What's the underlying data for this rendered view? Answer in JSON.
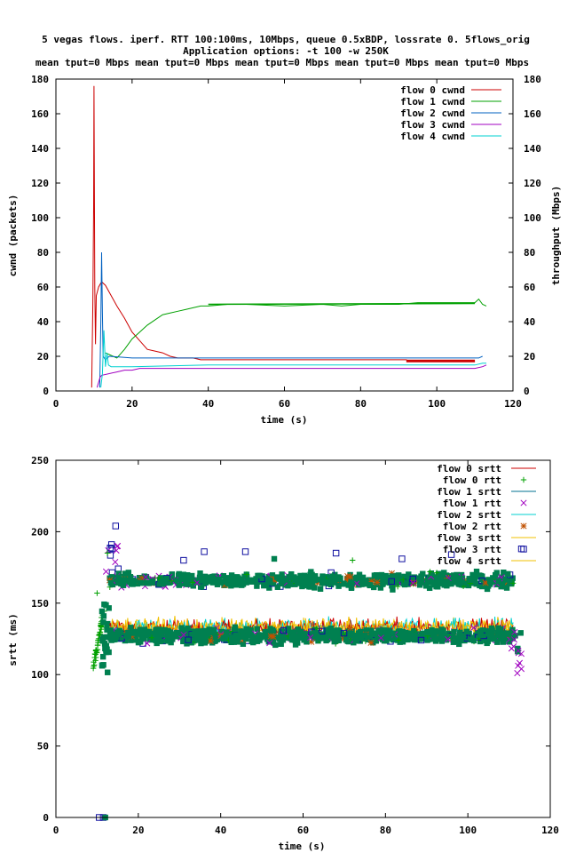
{
  "figure": {
    "title_lines": [
      "5 vegas flows. iperf. RTT 100:100ms, 10Mbps, queue 0.5xBDP, lossrate 0. 5flows_orig",
      "Application options: -t 100 -w 250K",
      "mean tput=0 Mbps mean tput=0 Mbps mean tput=0 Mbps mean tput=0 Mbps mean tput=0 Mbps"
    ]
  },
  "chart_data": [
    {
      "type": "line",
      "xlabel": "time (s)",
      "ylabel": "cwnd (packets)",
      "y2label": "throughput (Mbps)",
      "xlim": [
        0,
        120
      ],
      "ylim": [
        0,
        180
      ],
      "y2lim": [
        0,
        180
      ],
      "xticks": [
        "0",
        "20",
        "40",
        "60",
        "80",
        "100",
        "120"
      ],
      "yticks": [
        "0",
        "20",
        "40",
        "60",
        "80",
        "100",
        "120",
        "140",
        "160",
        "180"
      ],
      "y2ticks": [
        "0",
        "20",
        "40",
        "60",
        "80",
        "100",
        "120",
        "140",
        "160",
        "180"
      ],
      "legend_position": "top-right",
      "series": [
        {
          "name": "flow 0 cwnd",
          "color": "#cc0000",
          "points": [
            [
              9.4,
              2
            ],
            [
              9.7,
              50
            ],
            [
              9.9,
              106
            ],
            [
              10.0,
              176
            ],
            [
              10.2,
              60
            ],
            [
              10.4,
              27
            ],
            [
              10.6,
              55
            ],
            [
              11.2,
              60
            ],
            [
              12,
              63
            ],
            [
              13,
              61
            ],
            [
              14,
              57
            ],
            [
              15,
              53
            ],
            [
              16,
              49
            ],
            [
              18,
              42
            ],
            [
              20,
              34
            ],
            [
              22,
              29
            ],
            [
              24,
              24
            ],
            [
              26,
              23
            ],
            [
              28,
              22
            ],
            [
              30,
              20
            ],
            [
              32,
              19
            ],
            [
              36,
              19
            ],
            [
              38,
              18
            ],
            [
              60,
              18
            ],
            [
              92,
              18
            ],
            [
              93,
              17
            ],
            [
              110,
              17
            ]
          ]
        },
        {
          "name": "flow 1 cwnd",
          "color": "#00a000",
          "points": [
            [
              13,
              22
            ],
            [
              15,
              20
            ],
            [
              16,
              19
            ],
            [
              18,
              24
            ],
            [
              20,
              30
            ],
            [
              22,
              34
            ],
            [
              24,
              38
            ],
            [
              26,
              41
            ],
            [
              28,
              44
            ],
            [
              30,
              45
            ],
            [
              32,
              46
            ],
            [
              34,
              47
            ],
            [
              36,
              48
            ],
            [
              38,
              49
            ],
            [
              40,
              49
            ],
            [
              45,
              50
            ],
            [
              50,
              50
            ],
            [
              60,
              49
            ],
            [
              70,
              50
            ],
            [
              75,
              49
            ],
            [
              80,
              50
            ],
            [
              90,
              50
            ],
            [
              95,
              51
            ],
            [
              100,
              51
            ],
            [
              110,
              51
            ],
            [
              111,
              53
            ],
            [
              112,
              50
            ],
            [
              113,
              49
            ]
          ]
        },
        {
          "name": "flow 2 cwnd",
          "color": "#0060c0",
          "points": [
            [
              11.5,
              2
            ],
            [
              11.8,
              40
            ],
            [
              12.0,
              80
            ],
            [
              12.2,
              45
            ],
            [
              12.4,
              20
            ],
            [
              13,
              18
            ],
            [
              14,
              20
            ],
            [
              20,
              19
            ],
            [
              40,
              19
            ],
            [
              80,
              19
            ],
            [
              110,
              19
            ],
            [
              111,
              19
            ],
            [
              112,
              20
            ]
          ]
        },
        {
          "name": "flow 3 cwnd",
          "color": "#a000c0",
          "points": [
            [
              10.8,
              2
            ],
            [
              11.2,
              5
            ],
            [
              11.6,
              8
            ],
            [
              12,
              9
            ],
            [
              14,
              10
            ],
            [
              16,
              11
            ],
            [
              18,
              12
            ],
            [
              20,
              12
            ],
            [
              22,
              13
            ],
            [
              40,
              13
            ],
            [
              80,
              13
            ],
            [
              110,
              13
            ],
            [
              112,
              14
            ],
            [
              113,
              15
            ]
          ]
        },
        {
          "name": "flow 4 cwnd",
          "color": "#00d0d0",
          "points": [
            [
              11.8,
              2
            ],
            [
              12.2,
              10
            ],
            [
              12.6,
              35
            ],
            [
              13.0,
              14
            ],
            [
              13.4,
              22
            ],
            [
              13.8,
              15
            ],
            [
              14.5,
              14
            ],
            [
              20,
              14
            ],
            [
              40,
              15
            ],
            [
              80,
              15
            ],
            [
              110,
              15
            ],
            [
              112,
              16
            ],
            [
              113,
              16
            ]
          ]
        }
      ]
    },
    {
      "type": "scatter",
      "xlabel": "time (s)",
      "ylabel": "srtt (ms)",
      "xlim": [
        0,
        120
      ],
      "ylim": [
        0,
        250
      ],
      "xticks": [
        "0",
        "20",
        "40",
        "60",
        "80",
        "100",
        "120"
      ],
      "yticks": [
        "0",
        "50",
        "100",
        "150",
        "200",
        "250"
      ],
      "legend_position": "top-right",
      "legend": [
        {
          "name": "flow 0 srtt",
          "style": "line",
          "color": "#cc0000"
        },
        {
          "name": "flow 0 rtt",
          "style": "plus",
          "color": "#00a000"
        },
        {
          "name": "flow 1 srtt",
          "style": "line",
          "color": "#007090"
        },
        {
          "name": "flow 1 rtt",
          "style": "cross",
          "color": "#a000c0"
        },
        {
          "name": "flow 2 srtt",
          "style": "line",
          "color": "#00d0d0"
        },
        {
          "name": "flow 2 rtt",
          "style": "star",
          "color": "#c05000"
        },
        {
          "name": "flow 3 srtt",
          "style": "line",
          "color": "#f0c000"
        },
        {
          "name": "flow 3 rtt",
          "style": "square",
          "color": "#1010a0"
        },
        {
          "name": "flow 4 srtt",
          "style": "line",
          "color": "#f0c000"
        }
      ],
      "upper_band": {
        "x_range": [
          13,
          111
        ],
        "y_center": 166,
        "y_spread": 7
      },
      "lower_band": {
        "x_range": [
          13,
          111
        ],
        "y_center": 127,
        "y_spread": 7
      },
      "mid_band": {
        "x_range": [
          13,
          111
        ],
        "y_center": 133,
        "y_spread": 9
      },
      "outliers": [
        {
          "x": 14.5,
          "y": 204,
          "marker": "square"
        },
        {
          "x": 13.5,
          "y": 191,
          "marker": "square"
        },
        {
          "x": 15,
          "y": 190,
          "marker": "cross"
        },
        {
          "x": 12.5,
          "y": 185,
          "marker": "plus"
        },
        {
          "x": 10,
          "y": 157,
          "marker": "plus"
        },
        {
          "x": 31,
          "y": 180,
          "marker": "square"
        },
        {
          "x": 36,
          "y": 186,
          "marker": "square"
        },
        {
          "x": 46,
          "y": 186,
          "marker": "square"
        },
        {
          "x": 53,
          "y": 181,
          "marker": "filled-square"
        },
        {
          "x": 68,
          "y": 185,
          "marker": "square"
        },
        {
          "x": 72,
          "y": 180,
          "marker": "plus"
        },
        {
          "x": 84,
          "y": 181,
          "marker": "square"
        },
        {
          "x": 96,
          "y": 184,
          "marker": "square"
        },
        {
          "x": 113,
          "y": 188,
          "marker": "square"
        },
        {
          "x": 112,
          "y": 101,
          "marker": "cross"
        },
        {
          "x": 113,
          "y": 104,
          "marker": "cross"
        },
        {
          "x": 10.5,
          "y": 0,
          "marker": "square"
        },
        {
          "x": 11.5,
          "y": 0,
          "marker": "square"
        },
        {
          "x": 12,
          "y": 0,
          "marker": "filled-square"
        }
      ],
      "colors": {
        "dominant_marker": "#008050",
        "square_marker": "#1010a0",
        "cross_marker": "#a000c0",
        "plus_marker": "#00a000",
        "star_marker": "#c05000",
        "srtt_yellow": "#f0c000",
        "srtt_cyan": "#00d0d0",
        "srtt_red": "#cc0000"
      }
    }
  ]
}
